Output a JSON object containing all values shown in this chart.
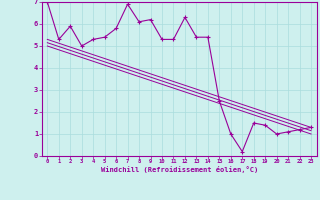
{
  "title": "",
  "xlabel": "Windchill (Refroidissement éolien,°C)",
  "background_color": "#cef0ee",
  "line_color": "#990099",
  "grid_color": "#aadddd",
  "spine_color": "#880088",
  "xlim": [
    -0.5,
    23.5
  ],
  "ylim": [
    0,
    7
  ],
  "xtick_labels": [
    "0",
    "1",
    "2",
    "3",
    "4",
    "5",
    "6",
    "7",
    "8",
    "9",
    "10",
    "11",
    "12",
    "13",
    "14",
    "15",
    "16",
    "17",
    "18",
    "19",
    "20",
    "21",
    "22",
    "23"
  ],
  "ytick_labels": [
    "0",
    "1",
    "2",
    "3",
    "4",
    "5",
    "6",
    "7"
  ],
  "series1_x": [
    0,
    1,
    2,
    3,
    4,
    5,
    6,
    7,
    8,
    9,
    10,
    11,
    12,
    13,
    14,
    15,
    16,
    17,
    18,
    19,
    20,
    21,
    22,
    23
  ],
  "series1_y": [
    7.0,
    5.3,
    5.9,
    5.0,
    5.3,
    5.4,
    5.8,
    6.9,
    6.1,
    6.2,
    5.3,
    5.3,
    6.3,
    5.4,
    5.4,
    2.5,
    1.0,
    0.2,
    1.5,
    1.4,
    1.0,
    1.1,
    1.2,
    1.3
  ],
  "series2_x": [
    0,
    23
  ],
  "series2_y": [
    5.3,
    1.3
  ],
  "series3_x": [
    0,
    23
  ],
  "series3_y": [
    5.15,
    1.15
  ],
  "series4_x": [
    0,
    23
  ],
  "series4_y": [
    5.0,
    1.0
  ]
}
